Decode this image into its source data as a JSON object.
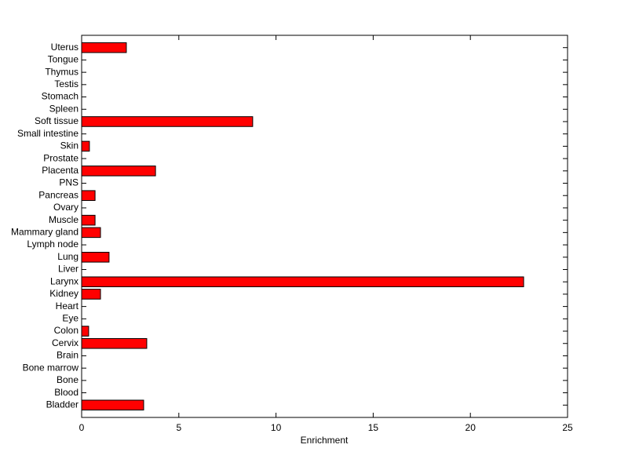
{
  "chart_data": {
    "type": "barh",
    "xlabel": "Enrichment",
    "categories": [
      "Bladder",
      "Blood",
      "Bone",
      "Bone marrow",
      "Brain",
      "Cervix",
      "Colon",
      "Eye",
      "Heart",
      "Kidney",
      "Larynx",
      "Liver",
      "Lung",
      "Lymph node",
      "Mammary gland",
      "Muscle",
      "Ovary",
      "Pancreas",
      "PNS",
      "Placenta",
      "Prostate",
      "Skin",
      "Small intestine",
      "Soft tissue",
      "Spleen",
      "Stomach",
      "Testis",
      "Thymus",
      "Tongue",
      "Uterus"
    ],
    "values": [
      3.19,
      0,
      0,
      0,
      0,
      3.35,
      0.36,
      0,
      0,
      0.97,
      22.74,
      0,
      1.41,
      0,
      0.97,
      0.69,
      0,
      0.69,
      0,
      3.8,
      0,
      0.4,
      0,
      8.8,
      0,
      0,
      0,
      0,
      0,
      2.3
    ],
    "color": "#ff0000",
    "xlim": [
      0,
      25
    ],
    "xticks": [
      0,
      5,
      10,
      15,
      20,
      25
    ]
  }
}
